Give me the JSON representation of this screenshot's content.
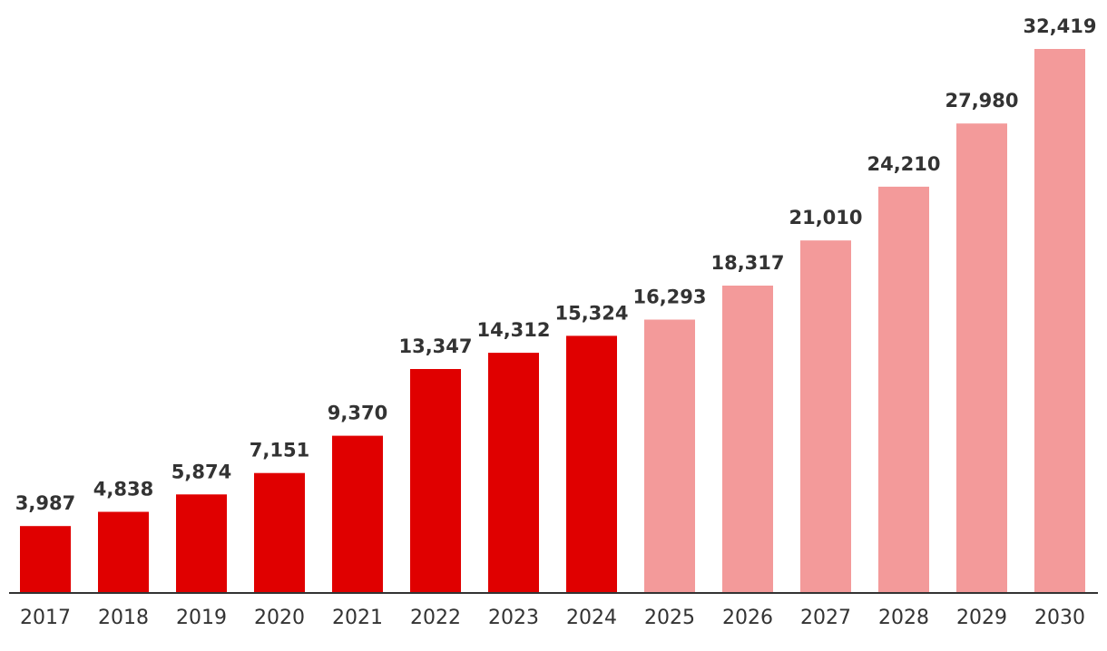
{
  "chart_data": {
    "type": "bar",
    "title": "",
    "xlabel": "",
    "ylabel": "",
    "categories": [
      "2017",
      "2018",
      "2019",
      "2020",
      "2021",
      "2022",
      "2023",
      "2024",
      "2025",
      "2026",
      "2027",
      "2028",
      "2029",
      "2030"
    ],
    "values": [
      3987,
      4838,
      5874,
      7151,
      9370,
      13347,
      14312,
      15324,
      16293,
      18317,
      21010,
      24210,
      27980,
      32419
    ],
    "value_labels": [
      "3,987",
      "4,838",
      "5,874",
      "7,151",
      "9,370",
      "13,347",
      "14,312",
      "15,324",
      "16,293",
      "18,317",
      "21,010",
      "24,210",
      "27,980",
      "32,419"
    ],
    "series_kind": [
      "actual",
      "actual",
      "actual",
      "actual",
      "actual",
      "actual",
      "actual",
      "actual",
      "forecast",
      "forecast",
      "forecast",
      "forecast",
      "forecast",
      "forecast"
    ],
    "ylim": [
      0,
      32419
    ],
    "grid": false,
    "legend": "none",
    "colors": {
      "actual": "#e00000",
      "forecast": "#f39a9a",
      "axis": "#333333",
      "text": "#333333"
    }
  }
}
